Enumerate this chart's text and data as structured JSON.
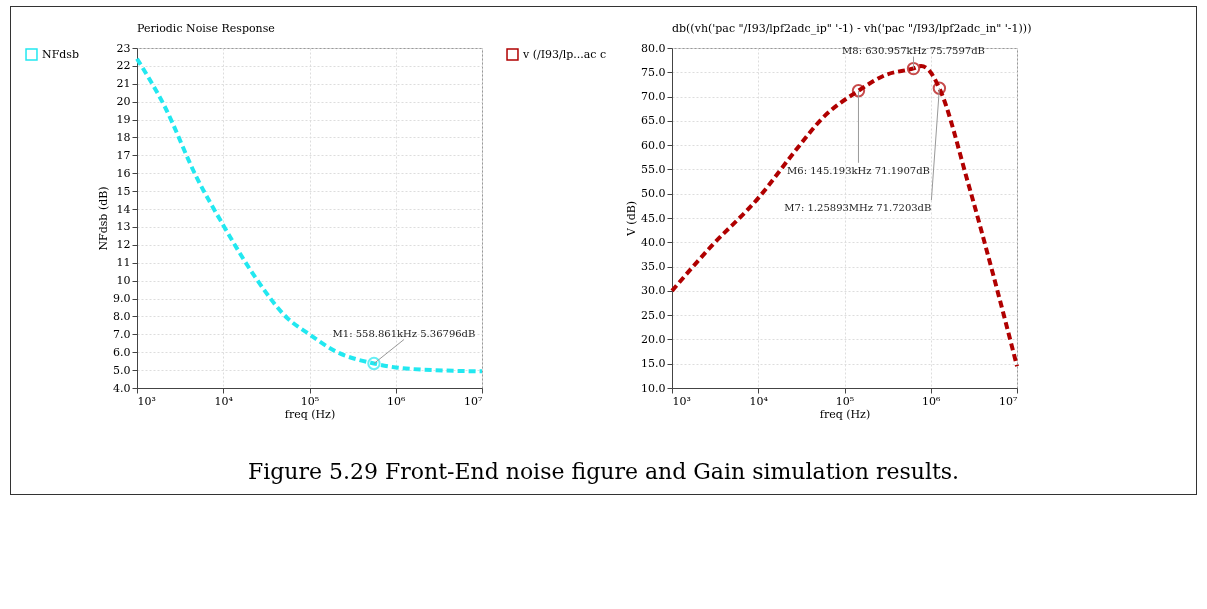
{
  "chart_data": [
    {
      "type": "line",
      "title": "Periodic Noise Response",
      "xlabel": "freq (Hz)",
      "ylabel": "NFdsb (dB)",
      "log": "x",
      "grid": true,
      "legend": "left",
      "line_style": "dashed",
      "xlim": [
        1000,
        10000000
      ],
      "xticks": [
        {
          "value": 1000,
          "label": "10³"
        },
        {
          "value": 10000,
          "label": "10⁴"
        },
        {
          "value": 100000,
          "label": "10⁵"
        },
        {
          "value": 1000000,
          "label": "10⁶"
        },
        {
          "value": 10000000,
          "label": "10⁷"
        }
      ],
      "ylim": [
        4,
        23
      ],
      "yticks": [
        {
          "value": 4,
          "label": "4.0"
        },
        {
          "value": 5,
          "label": "5.0"
        },
        {
          "value": 6,
          "label": "6.0"
        },
        {
          "value": 7,
          "label": "7.0"
        },
        {
          "value": 8,
          "label": "8.0"
        },
        {
          "value": 9,
          "label": "9.0"
        },
        10,
        11,
        12,
        13,
        14,
        15,
        16,
        17,
        18,
        19,
        20,
        21,
        22,
        23
      ],
      "x": [
        1000,
        2060,
        5000,
        10000,
        24200,
        55500,
        100000,
        200000,
        558861,
        1000000,
        3500000,
        10000000
      ],
      "series": [
        {
          "name": "NFdsb",
          "color": "#22e8f0",
          "values": [
            22.4,
            19.8,
            15.7,
            13.1,
            10.1,
            7.9,
            7.0,
            6.05,
            5.37,
            5.15,
            4.98,
            4.93
          ]
        }
      ],
      "annotations": [
        {
          "text": "M1: 558.861kHz 5.36796dB",
          "x": 558861,
          "y": 5.36796
        }
      ]
    },
    {
      "type": "line",
      "title": "db((vh('pac \"/I93/lpf2adc_ip\" '-1) - vh('pac \"/I93/lpf2adc_in\" '-1)))",
      "xlabel": "freq (Hz)",
      "ylabel": "V (dB)",
      "log": "x",
      "grid": true,
      "legend": "left",
      "line_style": "dashed",
      "xlim": [
        1000,
        10000000
      ],
      "xticks": [
        {
          "value": 1000,
          "label": "10³"
        },
        {
          "value": 10000,
          "label": "10⁴"
        },
        {
          "value": 100000,
          "label": "10⁵"
        },
        {
          "value": 1000000,
          "label": "10⁶"
        },
        {
          "value": 10000000,
          "label": "10⁷"
        }
      ],
      "ylim": [
        10,
        80
      ],
      "yticks": [
        {
          "value": 10,
          "label": "10.0"
        },
        {
          "value": 15,
          "label": "15.0"
        },
        {
          "value": 20,
          "label": "20.0"
        },
        {
          "value": 25,
          "label": "25.0"
        },
        {
          "value": 30,
          "label": "30.0"
        },
        {
          "value": 35,
          "label": "35.0"
        },
        {
          "value": 40,
          "label": "40.0"
        },
        {
          "value": 45,
          "label": "45.0"
        },
        {
          "value": 50,
          "label": "50.0"
        },
        {
          "value": 55,
          "label": "55.0"
        },
        {
          "value": 60,
          "label": "60.0"
        },
        {
          "value": 65,
          "label": "65.0"
        },
        {
          "value": 70,
          "label": "70.0"
        },
        {
          "value": 75,
          "label": "75.0"
        },
        {
          "value": 80,
          "label": "80.0"
        }
      ],
      "x": [
        1000,
        2825,
        10000,
        27900,
        54400,
        145193,
        295000,
        630957,
        773000,
        955000,
        1258930,
        2720000,
        5300000,
        10000000
      ],
      "series": [
        {
          "name": "v (/I93/lp...ac c",
          "color": "#b00000",
          "values": [
            30.0,
            39.1,
            49.1,
            59.2,
            65.4,
            71.2,
            74.4,
            75.8,
            76.3,
            75.4,
            71.7,
            52.1,
            33.3,
            14.5
          ]
        }
      ],
      "annotations": [
        {
          "text": "M8: 630.957kHz 75.7597dB",
          "x": 630957,
          "y": 75.7597
        },
        {
          "text": "M6: 145.193kHz 71.1907dB",
          "x": 145193,
          "y": 71.1907
        },
        {
          "text": "M7: 1.25893MHz 71.7203dB",
          "x": 1258930,
          "y": 71.7203
        },
        "Figure 5.29 Front-End noise figure and Gain simulation results."
      ]
    }
  ]
}
